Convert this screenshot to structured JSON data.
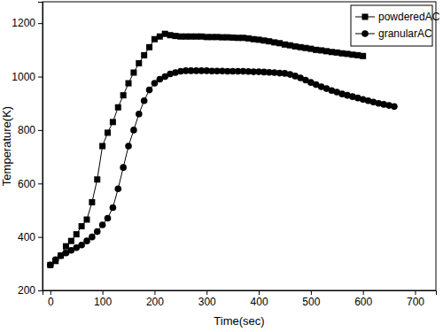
{
  "chart_data": {
    "type": "line",
    "x_label": "Time(sec)",
    "y_label": "Temperature(K)",
    "xlim": [
      -15,
      740
    ],
    "xticks": [
      0,
      100,
      200,
      300,
      400,
      500,
      600,
      700
    ],
    "ylim": [
      200,
      1280
    ],
    "yticks": [
      200,
      400,
      600,
      800,
      1000,
      1200
    ],
    "grid": false,
    "legend": "upper right",
    "series": [
      {
        "name": "powderedAC",
        "color": "#000000",
        "marker": "square",
        "line_style": "solid",
        "x": [
          0,
          10,
          20,
          30,
          40,
          50,
          60,
          70,
          80,
          90,
          100,
          110,
          120,
          130,
          140,
          150,
          160,
          170,
          180,
          190,
          200,
          210,
          220,
          230,
          240,
          250,
          260,
          270,
          280,
          290,
          300,
          310,
          320,
          330,
          340,
          350,
          360,
          370,
          380,
          390,
          400,
          410,
          420,
          430,
          440,
          450,
          460,
          470,
          480,
          490,
          500,
          510,
          520,
          530,
          540,
          550,
          560,
          570,
          580,
          590,
          600
        ],
        "values": [
          295,
          310,
          330,
          365,
          385,
          410,
          440,
          465,
          530,
          615,
          740,
          790,
          830,
          885,
          930,
          975,
          1015,
          1050,
          1080,
          1110,
          1140,
          1150,
          1160,
          1155,
          1152,
          1150,
          1150,
          1150,
          1150,
          1150,
          1148,
          1148,
          1148,
          1147,
          1147,
          1146,
          1145,
          1145,
          1143,
          1140,
          1138,
          1135,
          1132,
          1128,
          1125,
          1120,
          1117,
          1113,
          1110,
          1107,
          1104,
          1100,
          1098,
          1095,
          1092,
          1090,
          1087,
          1085,
          1082,
          1080,
          1077
        ]
      },
      {
        "name": "granularAC",
        "color": "#000000",
        "marker": "circle",
        "line_style": "solid",
        "x": [
          0,
          10,
          20,
          30,
          40,
          50,
          60,
          70,
          80,
          90,
          100,
          110,
          120,
          130,
          140,
          150,
          160,
          170,
          180,
          190,
          200,
          210,
          220,
          230,
          240,
          250,
          260,
          270,
          280,
          290,
          300,
          310,
          320,
          330,
          340,
          350,
          360,
          370,
          380,
          390,
          400,
          410,
          420,
          430,
          440,
          450,
          460,
          470,
          480,
          490,
          500,
          510,
          520,
          530,
          540,
          550,
          560,
          570,
          580,
          590,
          600,
          610,
          620,
          630,
          640,
          650,
          660
        ],
        "values": [
          295,
          315,
          330,
          340,
          350,
          360,
          370,
          385,
          400,
          420,
          445,
          470,
          510,
          580,
          660,
          740,
          800,
          860,
          910,
          950,
          975,
          990,
          1000,
          1010,
          1015,
          1020,
          1022,
          1022,
          1022,
          1022,
          1022,
          1021,
          1021,
          1021,
          1020,
          1020,
          1020,
          1020,
          1019,
          1018,
          1018,
          1017,
          1016,
          1015,
          1013,
          1012,
          1008,
          1002,
          995,
          987,
          978,
          970,
          962,
          955,
          948,
          942,
          935,
          930,
          925,
          920,
          915,
          910,
          905,
          900,
          896,
          892,
          888
        ]
      }
    ]
  }
}
